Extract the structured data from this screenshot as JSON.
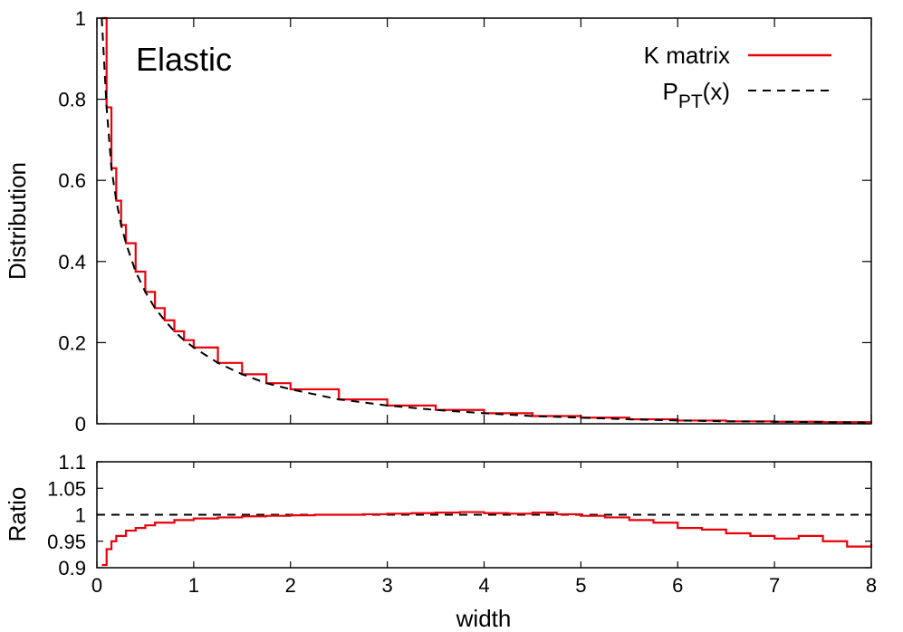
{
  "chart_data": [
    {
      "type": "line",
      "panel": "main",
      "title": "",
      "annotation": "Elastic",
      "xlabel": "",
      "ylabel": "Distribution",
      "xlim": [
        0,
        8
      ],
      "ylim": [
        0,
        1
      ],
      "x_ticks": [
        {
          "value": 0,
          "label": "0"
        },
        {
          "value": 1,
          "label": "1"
        },
        {
          "value": 2,
          "label": "2"
        },
        {
          "value": 3,
          "label": "3"
        },
        {
          "value": 4,
          "label": "4"
        },
        {
          "value": 5,
          "label": "5"
        },
        {
          "value": 6,
          "label": "6"
        },
        {
          "value": 7,
          "label": "7"
        },
        {
          "value": 8,
          "label": "8"
        }
      ],
      "y_ticks": [
        {
          "value": 0,
          "label": "0"
        },
        {
          "value": 0.2,
          "label": "0.2"
        },
        {
          "value": 0.4,
          "label": "0.4"
        },
        {
          "value": 0.6,
          "label": "0.6"
        },
        {
          "value": 0.8,
          "label": "0.8"
        },
        {
          "value": 1,
          "label": "1"
        }
      ],
      "grid": false,
      "legend_position": "top-right",
      "series": [
        {
          "name": "K matrix",
          "style": "step",
          "color": "#e8000b",
          "x": [
            0.05,
            0.1,
            0.15,
            0.2,
            0.25,
            0.3,
            0.4,
            0.5,
            0.6,
            0.7,
            0.8,
            0.9,
            1.0,
            1.25,
            1.5,
            1.75,
            2.0,
            2.5,
            3.0,
            3.5,
            4.0,
            4.5,
            5.0,
            5.5,
            6.0,
            6.5,
            7.0,
            7.5,
            8.0
          ],
          "y": [
            1.0,
            0.78,
            0.63,
            0.55,
            0.49,
            0.445,
            0.375,
            0.325,
            0.285,
            0.255,
            0.228,
            0.206,
            0.188,
            0.15,
            0.122,
            0.1,
            0.085,
            0.06,
            0.045,
            0.034,
            0.026,
            0.019,
            0.015,
            0.011,
            0.008,
            0.006,
            0.005,
            0.004,
            0.003
          ]
        },
        {
          "name": "P_PT(x)",
          "legend_label": {
            "main": "P",
            "sub": "PT",
            "rest": "(x)"
          },
          "style": "dashed",
          "color": "#000000",
          "x": [
            0.05,
            0.1,
            0.15,
            0.2,
            0.25,
            0.3,
            0.4,
            0.5,
            0.6,
            0.7,
            0.8,
            0.9,
            1.0,
            1.25,
            1.5,
            1.75,
            2.0,
            2.5,
            3.0,
            3.5,
            4.0,
            4.5,
            5.0,
            5.5,
            6.0,
            6.5,
            7.0,
            7.5,
            8.0
          ],
          "y": [
            1.0,
            0.78,
            0.63,
            0.55,
            0.49,
            0.445,
            0.375,
            0.325,
            0.285,
            0.255,
            0.228,
            0.206,
            0.188,
            0.15,
            0.122,
            0.1,
            0.085,
            0.06,
            0.045,
            0.034,
            0.026,
            0.019,
            0.015,
            0.011,
            0.008,
            0.006,
            0.005,
            0.004,
            0.003
          ]
        }
      ]
    },
    {
      "type": "line",
      "panel": "ratio",
      "title": "",
      "xlabel": "width",
      "ylabel": "Ratio",
      "xlim": [
        0,
        8
      ],
      "ylim": [
        0.9,
        1.1
      ],
      "x_ticks": [
        {
          "value": 0,
          "label": "0"
        },
        {
          "value": 1,
          "label": "1"
        },
        {
          "value": 2,
          "label": "2"
        },
        {
          "value": 3,
          "label": "3"
        },
        {
          "value": 4,
          "label": "4"
        },
        {
          "value": 5,
          "label": "5"
        },
        {
          "value": 6,
          "label": "6"
        },
        {
          "value": 7,
          "label": "7"
        },
        {
          "value": 8,
          "label": "8"
        }
      ],
      "y_ticks": [
        {
          "value": 0.9,
          "label": "0.9"
        },
        {
          "value": 0.95,
          "label": "0.95"
        },
        {
          "value": 1,
          "label": "1"
        },
        {
          "value": 1.05,
          "label": "1.05"
        },
        {
          "value": 1.1,
          "label": "1.1"
        }
      ],
      "grid": false,
      "reference_line": {
        "y": 1,
        "style": "dashed",
        "color": "#000000"
      },
      "series": [
        {
          "name": "",
          "style": "step",
          "color": "#e8000b",
          "x": [
            0.05,
            0.1,
            0.15,
            0.2,
            0.3,
            0.4,
            0.5,
            0.6,
            0.8,
            1.0,
            1.25,
            1.5,
            1.75,
            2.0,
            2.25,
            2.5,
            2.75,
            3.0,
            3.25,
            3.5,
            3.75,
            4.0,
            4.25,
            4.5,
            4.75,
            5.0,
            5.25,
            5.5,
            5.75,
            6.0,
            6.25,
            6.5,
            6.75,
            7.0,
            7.25,
            7.5,
            7.75,
            8.0
          ],
          "y": [
            0.905,
            0.935,
            0.95,
            0.96,
            0.97,
            0.975,
            0.98,
            0.985,
            0.99,
            0.993,
            0.995,
            0.997,
            0.998,
            0.999,
            1.0,
            1.0,
            1.001,
            1.002,
            1.003,
            1.004,
            1.005,
            1.003,
            1.002,
            1.004,
            1.001,
            0.998,
            0.995,
            0.99,
            0.985,
            0.975,
            0.972,
            0.965,
            0.96,
            0.955,
            0.96,
            0.95,
            0.94,
            0.945
          ]
        }
      ]
    }
  ]
}
